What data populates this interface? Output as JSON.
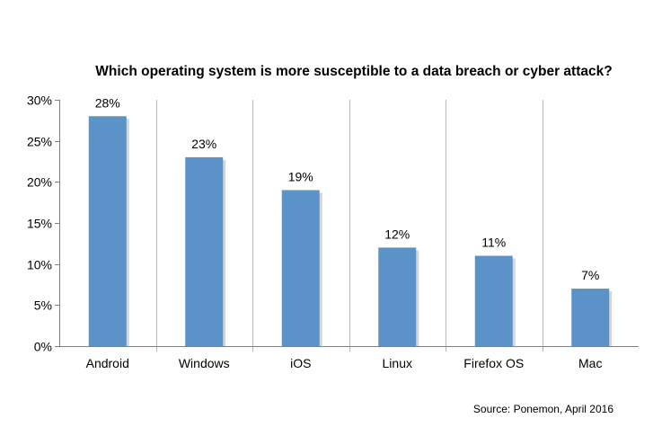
{
  "chart_data": {
    "type": "bar",
    "title": "Which operating system is more susceptible to a data breach or cyber attack?",
    "categories": [
      "Android",
      "Windows",
      "iOS",
      "Linux",
      "Firefox OS",
      "Mac"
    ],
    "values": [
      28,
      23,
      19,
      12,
      11,
      7
    ],
    "data_labels": [
      "28%",
      "23%",
      "19%",
      "12%",
      "11%",
      "7%"
    ],
    "yticks": [
      0,
      5,
      10,
      15,
      20,
      25,
      30
    ],
    "ytick_labels": [
      "0%",
      "5%",
      "10%",
      "15%",
      "20%",
      "25%",
      "30%"
    ],
    "ylim": [
      0,
      30
    ],
    "xlabel": "",
    "ylabel": "",
    "grid": "vertical category separators",
    "legend": "none",
    "bar_color": "#5b93c8",
    "source": "Source: Ponemon, April 2016"
  }
}
